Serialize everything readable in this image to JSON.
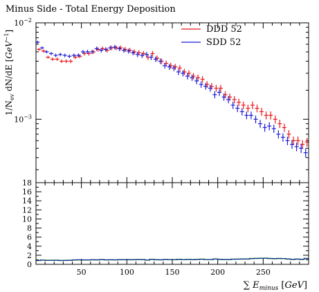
{
  "chart_data": {
    "type": "scatter",
    "title": "Minus Side - Total Energy Deposition",
    "xlabel": "∑ E_minus [GeV]",
    "ylabel": "1/N_ev dN/dE [GeV^-1]",
    "ratio_ylabel": "",
    "xlim": [
      0,
      300
    ],
    "ylim": [
      0.00022,
      0.01
    ],
    "ylog": true,
    "ratio_ylim": [
      0,
      18
    ],
    "x_ticks": [
      50,
      100,
      150,
      200,
      250
    ],
    "y_tick_labels": [
      "10^-2",
      "10^-3"
    ],
    "ratio_ticks": [
      0,
      2,
      4,
      6,
      8,
      10,
      12,
      14,
      16,
      18
    ],
    "legend_placement": "top-right",
    "colors": {
      "ddd": "#e8161a",
      "sdd": "#1b1bd6",
      "ratio": "#1a7a1a"
    },
    "x": [
      2.5,
      7.5,
      12.5,
      17.5,
      22.5,
      27.5,
      32.5,
      37.5,
      42.5,
      47.5,
      52.5,
      57.5,
      62.5,
      67.5,
      72.5,
      77.5,
      82.5,
      87.5,
      92.5,
      97.5,
      102.5,
      107.5,
      112.5,
      117.5,
      122.5,
      127.5,
      132.5,
      137.5,
      142.5,
      147.5,
      152.5,
      157.5,
      162.5,
      167.5,
      172.5,
      177.5,
      182.5,
      187.5,
      192.5,
      197.5,
      202.5,
      207.5,
      212.5,
      217.5,
      222.5,
      227.5,
      232.5,
      237.5,
      242.5,
      247.5,
      252.5,
      257.5,
      262.5,
      267.5,
      272.5,
      277.5,
      282.5,
      287.5,
      292.5,
      297.5
    ],
    "series": [
      {
        "name": "DDD 52",
        "values": [
          0.0053,
          0.0051,
          0.0044,
          0.0042,
          0.0042,
          0.004,
          0.004,
          0.004,
          0.0044,
          0.0045,
          0.0048,
          0.0048,
          0.005,
          0.0053,
          0.0054,
          0.0052,
          0.0055,
          0.0055,
          0.0055,
          0.0053,
          0.0052,
          0.005,
          0.0049,
          0.0048,
          0.0044,
          0.0048,
          0.0043,
          0.004,
          0.0038,
          0.0036,
          0.0035,
          0.0034,
          0.0031,
          0.003,
          0.0028,
          0.0027,
          0.0026,
          0.0023,
          0.0022,
          0.0021,
          0.0021,
          0.0018,
          0.0017,
          0.0016,
          0.0015,
          0.0014,
          0.0013,
          0.0014,
          0.0013,
          0.0012,
          0.0011,
          0.0011,
          0.001,
          0.0009,
          0.00082,
          0.0007,
          0.0006,
          0.0006,
          0.00055,
          0.00058
        ]
      },
      {
        "name": "SDD 52",
        "values": [
          0.0063,
          0.0055,
          0.005,
          0.0048,
          0.0046,
          0.0047,
          0.0046,
          0.0045,
          0.0046,
          0.0046,
          0.005,
          0.005,
          0.005,
          0.0054,
          0.0052,
          0.0053,
          0.0055,
          0.0056,
          0.0054,
          0.0052,
          0.0051,
          0.0049,
          0.0047,
          0.0046,
          0.0047,
          0.0044,
          0.0042,
          0.004,
          0.0036,
          0.0035,
          0.0034,
          0.0031,
          0.003,
          0.0028,
          0.0027,
          0.0025,
          0.0023,
          0.0022,
          0.0021,
          0.0018,
          0.0019,
          0.0017,
          0.0016,
          0.0014,
          0.0013,
          0.0012,
          0.0011,
          0.0011,
          0.001,
          0.0009,
          0.00082,
          0.00085,
          0.0008,
          0.0007,
          0.00065,
          0.0006,
          0.00055,
          0.00052,
          0.0005,
          0.00045
        ]
      }
    ],
    "ratio_values": [
      0.85,
      0.93,
      0.88,
      0.88,
      0.91,
      0.85,
      0.87,
      0.89,
      0.96,
      0.98,
      0.96,
      0.96,
      1.0,
      0.98,
      1.04,
      0.98,
      1.0,
      0.98,
      1.02,
      1.02,
      1.02,
      1.02,
      1.04,
      1.04,
      0.94,
      1.09,
      1.02,
      1.0,
      1.06,
      1.03,
      1.03,
      1.1,
      1.03,
      1.07,
      1.04,
      1.08,
      1.13,
      1.05,
      1.05,
      1.17,
      1.1,
      1.06,
      1.06,
      1.14,
      1.15,
      1.17,
      1.18,
      1.27,
      1.3,
      1.33,
      1.34,
      1.29,
      1.25,
      1.29,
      1.26,
      1.17,
      1.09,
      1.15,
      1.1,
      1.29
    ]
  }
}
